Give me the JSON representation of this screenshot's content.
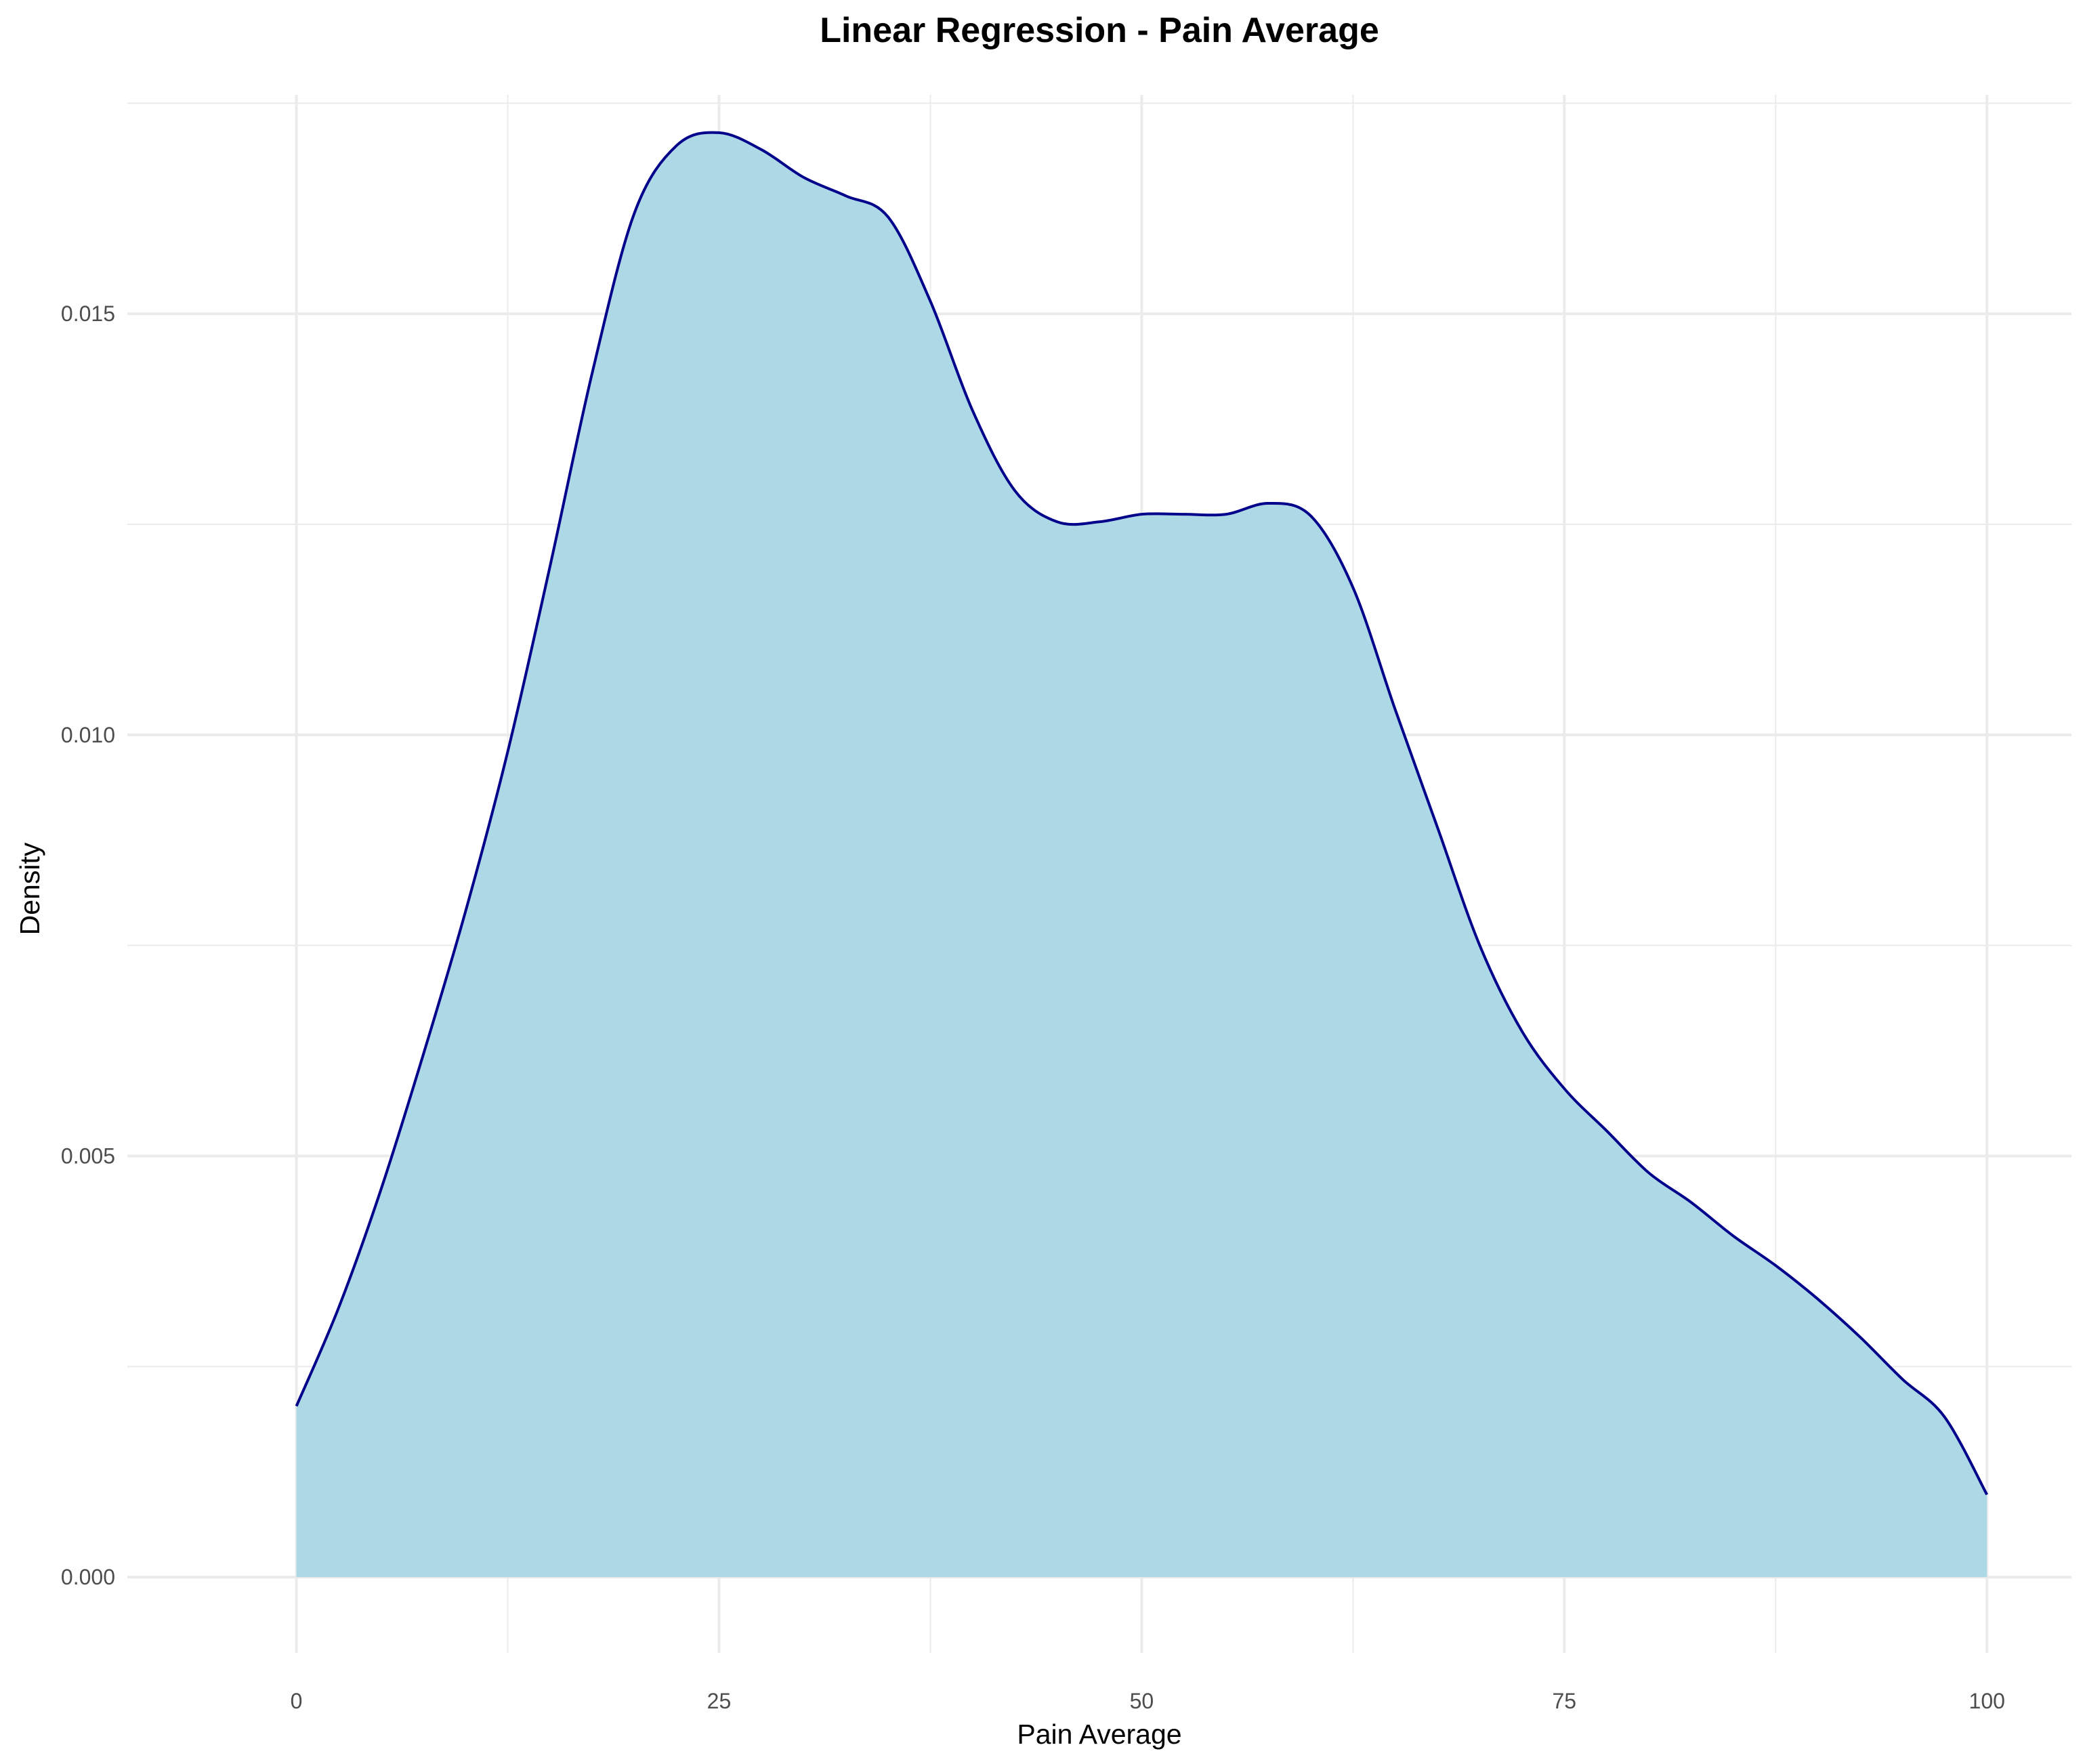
{
  "chart_data": {
    "type": "area",
    "title": "Linear Regression - Pain Average",
    "xlabel": "Pain Average",
    "ylabel": "Density",
    "xlim": [
      -10,
      105
    ],
    "ylim": [
      -0.0009,
      0.0176
    ],
    "x_ticks": [
      0,
      25,
      50,
      75,
      100
    ],
    "x_tick_labels": [
      "0",
      "25",
      "50",
      "75",
      "100"
    ],
    "y_ticks": [
      0.0,
      0.005,
      0.01,
      0.015
    ],
    "y_tick_labels": [
      "0.000",
      "0.005",
      "0.010",
      "0.015"
    ],
    "grid": true,
    "legend": "none",
    "fill_color": "#add8e6",
    "line_color": "#00008b",
    "series": [
      {
        "x": [
          0,
          2.5,
          5,
          7.5,
          10,
          12.5,
          15,
          17.5,
          20,
          22.5,
          25,
          27.5,
          30,
          32.5,
          35,
          37.5,
          40,
          42.5,
          45,
          47.5,
          50,
          52.5,
          55,
          57.5,
          60,
          62.5,
          65,
          67.5,
          70,
          72.5,
          75,
          77.5,
          80,
          82.5,
          85,
          87.5,
          90,
          92.5,
          95,
          97.5,
          100
        ],
        "values": [
          0.00203,
          0.0032,
          0.0046,
          0.0062,
          0.0079,
          0.0098,
          0.012,
          0.0143,
          0.0162,
          0.017,
          0.01715,
          0.01695,
          0.01662,
          0.0164,
          0.01615,
          0.01515,
          0.01385,
          0.0129,
          0.01253,
          0.01253,
          0.01262,
          0.01262,
          0.01262,
          0.01275,
          0.0126,
          0.01175,
          0.0103,
          0.0089,
          0.0075,
          0.00648,
          0.0058,
          0.0053,
          0.0048,
          0.00445,
          0.00405,
          0.0037,
          0.0033,
          0.00285,
          0.00235,
          0.0019,
          0.00098
        ]
      }
    ]
  }
}
